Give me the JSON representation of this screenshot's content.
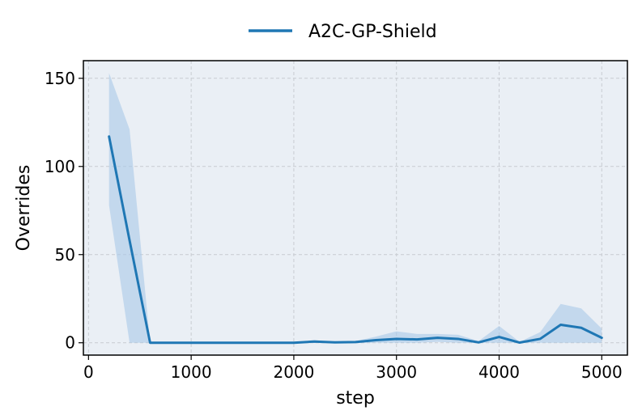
{
  "chart_data": {
    "type": "line",
    "title": "",
    "xlabel": "step",
    "ylabel": "Overrides",
    "xlim": [
      -50,
      5250
    ],
    "ylim": [
      -7,
      160
    ],
    "xticks": [
      0,
      1000,
      2000,
      3000,
      4000,
      5000
    ],
    "yticks": [
      0,
      50,
      100,
      150
    ],
    "grid": true,
    "legend_position": "top-center",
    "background_color": "#eaeff5",
    "series": [
      {
        "name": "A2C-GP-Shield",
        "color": "#1f77b4",
        "band_color": "#a8c8e8",
        "x": [
          200,
          400,
          600,
          800,
          1000,
          1200,
          1400,
          1600,
          1800,
          2000,
          2200,
          2400,
          2600,
          2800,
          3000,
          3200,
          3400,
          3600,
          3800,
          4000,
          4200,
          4400,
          4600,
          4800,
          5000
        ],
        "mean": [
          117,
          58,
          0,
          0,
          0,
          0,
          0,
          0,
          0,
          0,
          0.7,
          0.2,
          0.4,
          1.5,
          2.2,
          1.9,
          2.8,
          2.2,
          0.2,
          3.3,
          0.1,
          2.2,
          10.2,
          8.5,
          2.8
        ],
        "upper": [
          153,
          121,
          0,
          0,
          0,
          0,
          0,
          0,
          0,
          0,
          1.5,
          0.5,
          1,
          3.5,
          6.5,
          5,
          5,
          4.5,
          1,
          9.5,
          0.5,
          6,
          22,
          19.5,
          8
        ],
        "lower": [
          78,
          0,
          0,
          0,
          0,
          0,
          0,
          0,
          0,
          0,
          0,
          0,
          0,
          0,
          0,
          0,
          0.5,
          0,
          0,
          0,
          0,
          0,
          0,
          0,
          0
        ]
      }
    ]
  }
}
